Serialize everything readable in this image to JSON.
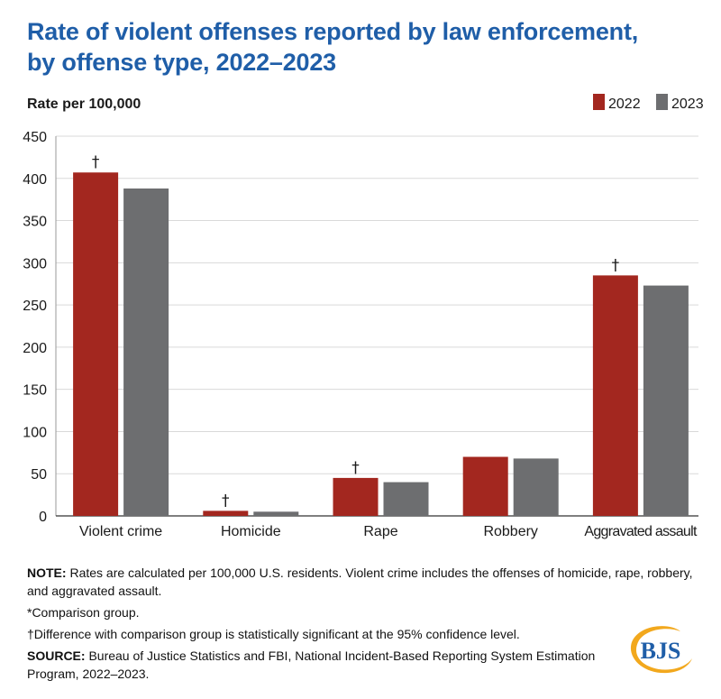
{
  "title_line1": "Rate of violent offenses reported by law enforcement,",
  "title_line2": "by offense type, 2022–2023",
  "colors": {
    "title": "#1f5ea8",
    "s2022": "#a3271f",
    "s2023": "#6d6e70",
    "grid": "#d9d9d9",
    "logo_ring": "#f2a81d",
    "logo_text": "#1f5ea8"
  },
  "chart_data": {
    "type": "bar",
    "ylabel": "Rate per 100,000",
    "ylim": [
      0,
      450
    ],
    "yticks": [
      0,
      50,
      100,
      150,
      200,
      250,
      300,
      350,
      400,
      450
    ],
    "categories": [
      "Violent crime",
      "Homicide",
      "Rape",
      "Robbery",
      "Aggravated assault"
    ],
    "series": [
      {
        "name": "2022",
        "values": [
          407,
          6,
          45,
          70,
          285
        ],
        "significant": [
          true,
          true,
          true,
          false,
          true
        ]
      },
      {
        "name": "2023",
        "values": [
          388,
          5,
          40,
          68,
          273
        ],
        "significant": [
          false,
          false,
          false,
          false,
          false
        ]
      }
    ],
    "significance_marker": "†",
    "legend_position": "top-right"
  },
  "notes": {
    "note_label": "NOTE:",
    "note_text": " Rates are calculated per 100,000 U.S. residents. Violent crime includes the offenses of homicide, rape, robbery, and aggravated assault.",
    "comparison": "*Comparison group.",
    "significance": "†Difference with comparison group is statistically significant at the 95% confidence level.",
    "source_label": "SOURCE:",
    "source_text": " Bureau of Justice Statistics and FBI, National Incident-Based Reporting System Estimation Program, 2022–2023."
  },
  "logo": {
    "text": "BJS"
  }
}
